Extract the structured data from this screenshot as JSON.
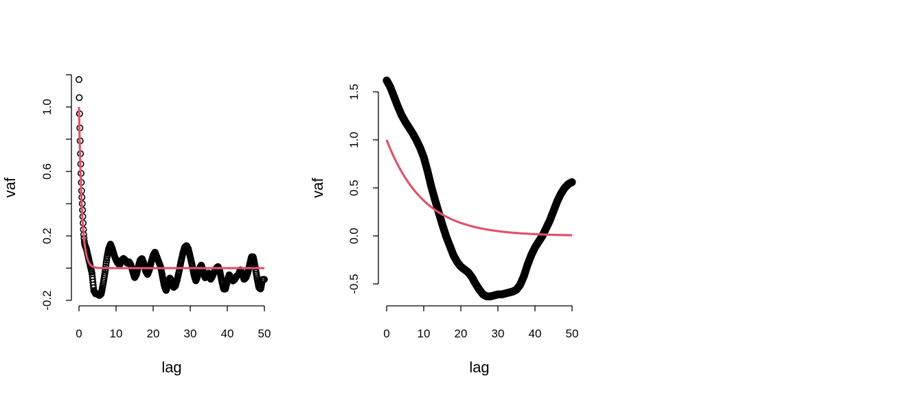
{
  "chart_data": [
    {
      "type": "scatter",
      "xlabel": "lag",
      "ylabel": "vaf",
      "xlim": [
        0,
        50
      ],
      "ylim": [
        -0.2,
        1.2
      ],
      "x_ticks": [
        0,
        10,
        20,
        30,
        40,
        50
      ],
      "x_tick_labels": [
        "0",
        "10",
        "20",
        "30",
        "40",
        "50"
      ],
      "y_ticks": [
        -0.2,
        0.0,
        0.2,
        0.4,
        0.6,
        0.8,
        1.0,
        1.2
      ],
      "y_tick_labels": [
        "-0.2",
        "",
        "0.2",
        "",
        "0.6",
        "",
        "1.0",
        ""
      ],
      "grid": false,
      "legend": "none",
      "colors": {
        "points": "#000000",
        "fit": "#DF536B"
      },
      "points_knots": [
        [
          0,
          1.17
        ],
        [
          0.1,
          1.03
        ],
        [
          0.2,
          0.91
        ],
        [
          0.3,
          0.81
        ],
        [
          0.4,
          0.71
        ],
        [
          0.5,
          0.63
        ],
        [
          0.6,
          0.56
        ],
        [
          0.7,
          0.49
        ],
        [
          0.8,
          0.44
        ],
        [
          0.9,
          0.39
        ],
        [
          1.0,
          0.34
        ],
        [
          1.1,
          0.29
        ],
        [
          1.2,
          0.24
        ],
        [
          1.3,
          0.2
        ],
        [
          1.5,
          0.15
        ],
        [
          2.0,
          0.12
        ],
        [
          2.5,
          0.07
        ],
        [
          3.0,
          0.02
        ],
        [
          3.5,
          -0.03
        ],
        [
          4.0,
          -0.14
        ],
        [
          4.5,
          -0.16
        ],
        [
          5.0,
          -0.16
        ],
        [
          5.5,
          -0.17
        ],
        [
          6.0,
          -0.16
        ],
        [
          6.5,
          -0.1
        ],
        [
          7.0,
          -0.03
        ],
        [
          7.5,
          0.06
        ],
        [
          8.0,
          0.12
        ],
        [
          8.5,
          0.15
        ],
        [
          9.0,
          0.12
        ],
        [
          9.5,
          0.08
        ],
        [
          10.0,
          0.05
        ],
        [
          10.5,
          0.03
        ],
        [
          11.0,
          0.02
        ],
        [
          11.5,
          0.05
        ],
        [
          12.0,
          0.06
        ],
        [
          12.5,
          0.05
        ],
        [
          13.0,
          0.03
        ],
        [
          13.5,
          0.04
        ],
        [
          14.0,
          0.02
        ],
        [
          14.5,
          -0.02
        ],
        [
          15.0,
          -0.06
        ],
        [
          15.5,
          -0.04
        ],
        [
          16.0,
          0.01
        ],
        [
          16.5,
          0.05
        ],
        [
          17.0,
          0.06
        ],
        [
          17.5,
          0.03
        ],
        [
          18.0,
          -0.02
        ],
        [
          18.5,
          -0.04
        ],
        [
          19.0,
          -0.01
        ],
        [
          19.5,
          0.04
        ],
        [
          20.0,
          0.08
        ],
        [
          20.5,
          0.1
        ],
        [
          21.0,
          0.07
        ],
        [
          21.5,
          0.04
        ],
        [
          22.0,
          0.01
        ],
        [
          22.5,
          -0.05
        ],
        [
          23.0,
          -0.11
        ],
        [
          23.5,
          -0.14
        ],
        [
          24.0,
          -0.1
        ],
        [
          24.5,
          -0.06
        ],
        [
          25.0,
          -0.08
        ],
        [
          25.5,
          -0.12
        ],
        [
          26.0,
          -0.11
        ],
        [
          26.5,
          -0.07
        ],
        [
          27.0,
          -0.02
        ],
        [
          27.5,
          0.04
        ],
        [
          28.0,
          0.09
        ],
        [
          28.5,
          0.13
        ],
        [
          29.0,
          0.14
        ],
        [
          29.5,
          0.12
        ],
        [
          30.0,
          0.07
        ],
        [
          30.5,
          0.02
        ],
        [
          31.0,
          -0.04
        ],
        [
          31.5,
          -0.08
        ],
        [
          32.0,
          -0.05
        ],
        [
          32.5,
          0.0
        ],
        [
          33.0,
          0.02
        ],
        [
          33.5,
          -0.02
        ],
        [
          34.0,
          -0.06
        ],
        [
          34.5,
          -0.04
        ],
        [
          35.0,
          -0.03
        ],
        [
          35.5,
          -0.07
        ],
        [
          36.0,
          -0.05
        ],
        [
          36.5,
          -0.02
        ],
        [
          37.0,
          0.0
        ],
        [
          37.5,
          0.01
        ],
        [
          38.0,
          -0.02
        ],
        [
          38.5,
          -0.08
        ],
        [
          39.0,
          -0.13
        ],
        [
          39.5,
          -0.13
        ],
        [
          40.0,
          -0.08
        ],
        [
          40.5,
          -0.04
        ],
        [
          41.0,
          -0.06
        ],
        [
          41.5,
          -0.08
        ],
        [
          42.0,
          -0.07
        ],
        [
          42.5,
          -0.05
        ],
        [
          43.0,
          -0.04
        ],
        [
          43.5,
          -0.01
        ],
        [
          44.0,
          -0.03
        ],
        [
          44.5,
          -0.07
        ],
        [
          45.0,
          -0.06
        ],
        [
          45.5,
          -0.03
        ],
        [
          46.0,
          0.02
        ],
        [
          46.5,
          0.07
        ],
        [
          47.0,
          0.07
        ],
        [
          47.5,
          0.01
        ],
        [
          48.0,
          -0.06
        ],
        [
          48.5,
          -0.12
        ],
        [
          49.0,
          -0.13
        ],
        [
          49.5,
          -0.07
        ],
        [
          50.0,
          -0.07
        ]
      ],
      "fit": {
        "model": "exponential",
        "sill": 1.0,
        "range": 0.8,
        "nugget": 0.0
      }
    },
    {
      "type": "scatter",
      "xlabel": "lag",
      "ylabel": "vaf",
      "xlim": [
        0,
        50
      ],
      "ylim": [
        -0.65,
        1.65
      ],
      "x_ticks": [
        0,
        10,
        20,
        30,
        40,
        50
      ],
      "x_tick_labels": [
        "0",
        "10",
        "20",
        "30",
        "40",
        "50"
      ],
      "y_ticks": [
        -0.5,
        0.0,
        0.5,
        1.0,
        1.5
      ],
      "y_tick_labels": [
        "-0.5",
        "0.0",
        "0.5",
        "1.0",
        "1.5"
      ],
      "grid": false,
      "legend": "none",
      "colors": {
        "points": "#000000",
        "fit": "#DF536B"
      },
      "points_knots": [
        [
          0,
          1.62
        ],
        [
          1,
          1.55
        ],
        [
          2,
          1.45
        ],
        [
          3,
          1.35
        ],
        [
          4,
          1.26
        ],
        [
          5,
          1.19
        ],
        [
          6,
          1.13
        ],
        [
          7,
          1.07
        ],
        [
          8,
          1.0
        ],
        [
          9,
          0.92
        ],
        [
          10,
          0.82
        ],
        [
          11,
          0.68
        ],
        [
          12,
          0.52
        ],
        [
          13,
          0.38
        ],
        [
          14,
          0.25
        ],
        [
          15,
          0.12
        ],
        [
          16,
          0.0
        ],
        [
          17,
          -0.1
        ],
        [
          18,
          -0.2
        ],
        [
          19,
          -0.27
        ],
        [
          20,
          -0.32
        ],
        [
          21,
          -0.35
        ],
        [
          22,
          -0.38
        ],
        [
          23,
          -0.43
        ],
        [
          24,
          -0.5
        ],
        [
          25,
          -0.56
        ],
        [
          26,
          -0.61
        ],
        [
          27,
          -0.63
        ],
        [
          28,
          -0.63
        ],
        [
          29,
          -0.62
        ],
        [
          30,
          -0.61
        ],
        [
          31,
          -0.61
        ],
        [
          32,
          -0.6
        ],
        [
          33,
          -0.59
        ],
        [
          34,
          -0.58
        ],
        [
          35,
          -0.56
        ],
        [
          36,
          -0.51
        ],
        [
          37,
          -0.42
        ],
        [
          38,
          -0.3
        ],
        [
          39,
          -0.2
        ],
        [
          40,
          -0.12
        ],
        [
          41,
          -0.06
        ],
        [
          42,
          0.0
        ],
        [
          43,
          0.08
        ],
        [
          44,
          0.16
        ],
        [
          45,
          0.26
        ],
        [
          46,
          0.36
        ],
        [
          47,
          0.44
        ],
        [
          48,
          0.5
        ],
        [
          49,
          0.54
        ],
        [
          50,
          0.56
        ]
      ],
      "fit": {
        "model": "exponential",
        "sill": 1.0,
        "range": 10.0,
        "nugget": 0.0
      }
    }
  ]
}
